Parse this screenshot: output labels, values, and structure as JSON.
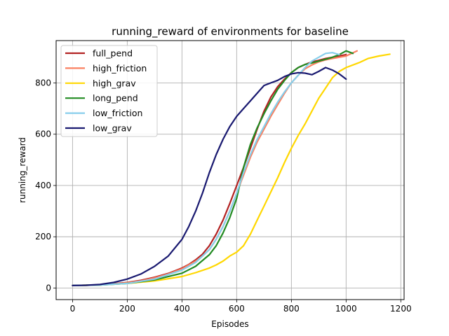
{
  "chart_data": {
    "type": "line",
    "title": "running_reward of environments for baseline",
    "xlabel": "Episodes",
    "ylabel": "running_reward",
    "xlim": [
      -60,
      1212
    ],
    "ylim": [
      -45,
      965
    ],
    "xticks": [
      0,
      200,
      400,
      600,
      800,
      1000,
      1200
    ],
    "yticks": [
      0,
      200,
      400,
      600,
      800
    ],
    "grid": true,
    "legend_position": "top-left",
    "series": [
      {
        "name": "full_pend",
        "color": "#b22222",
        "x": [
          0,
          50,
          100,
          150,
          200,
          250,
          300,
          350,
          400,
          425,
          450,
          475,
          500,
          525,
          550,
          575,
          600,
          625,
          650,
          675,
          700,
          725,
          750,
          775,
          800,
          825,
          850,
          875,
          900,
          925,
          950,
          975,
          1000
        ],
        "y": [
          10,
          11,
          13,
          17,
          22,
          30,
          42,
          57,
          78,
          92,
          110,
          132,
          165,
          210,
          265,
          330,
          400,
          470,
          545,
          620,
          690,
          745,
          785,
          815,
          840,
          860,
          872,
          882,
          888,
          895,
          900,
          905,
          910
        ]
      },
      {
        "name": "high_friction",
        "color": "#fa8060",
        "x": [
          0,
          50,
          100,
          150,
          200,
          250,
          300,
          350,
          400,
          450,
          475,
          500,
          525,
          550,
          575,
          600,
          625,
          650,
          675,
          700,
          725,
          750,
          775,
          800,
          825,
          850,
          875,
          900,
          925,
          950,
          975,
          1000,
          1040
        ],
        "y": [
          10,
          11,
          13,
          16,
          21,
          28,
          40,
          55,
          75,
          105,
          125,
          150,
          190,
          240,
          300,
          370,
          440,
          510,
          570,
          620,
          670,
          715,
          760,
          800,
          830,
          855,
          870,
          882,
          890,
          895,
          900,
          905,
          925
        ]
      },
      {
        "name": "high_grav",
        "color": "#ffd700",
        "x": [
          0,
          100,
          200,
          300,
          400,
          450,
          500,
          525,
          550,
          575,
          600,
          625,
          650,
          675,
          700,
          725,
          750,
          775,
          800,
          825,
          850,
          875,
          900,
          925,
          950,
          975,
          1000,
          1050,
          1080,
          1120,
          1160
        ],
        "y": [
          10,
          12,
          18,
          28,
          45,
          60,
          78,
          90,
          105,
          125,
          140,
          165,
          210,
          265,
          320,
          375,
          430,
          490,
          545,
          595,
          640,
          690,
          740,
          780,
          820,
          845,
          860,
          880,
          895,
          905,
          912
        ]
      },
      {
        "name": "long_pend",
        "color": "#228b22",
        "x": [
          0,
          100,
          200,
          300,
          400,
          450,
          500,
          525,
          550,
          575,
          600,
          625,
          650,
          675,
          700,
          725,
          750,
          775,
          800,
          825,
          850,
          875,
          900,
          925,
          950,
          975,
          1000,
          1025
        ],
        "y": [
          10,
          12,
          18,
          32,
          58,
          85,
          130,
          165,
          215,
          275,
          350,
          470,
          560,
          625,
          680,
          730,
          775,
          810,
          840,
          860,
          872,
          878,
          885,
          892,
          900,
          910,
          925,
          915
        ]
      },
      {
        "name": "low_friction",
        "color": "#87ceeb",
        "x": [
          0,
          100,
          200,
          300,
          400,
          450,
          500,
          525,
          550,
          575,
          600,
          625,
          650,
          675,
          700,
          725,
          750,
          775,
          800,
          825,
          850,
          875,
          900,
          925,
          950,
          975
        ],
        "y": [
          10,
          12,
          18,
          35,
          70,
          100,
          150,
          190,
          240,
          300,
          370,
          450,
          520,
          580,
          630,
          680,
          725,
          765,
          800,
          830,
          860,
          885,
          900,
          915,
          918,
          910
        ]
      },
      {
        "name": "low_grav",
        "color": "#191970",
        "x": [
          0,
          50,
          100,
          150,
          200,
          250,
          300,
          350,
          400,
          425,
          450,
          475,
          500,
          525,
          550,
          575,
          600,
          625,
          650,
          675,
          700,
          725,
          750,
          775,
          800,
          825,
          850,
          875,
          900,
          925,
          950,
          975,
          1000
        ],
        "y": [
          10,
          11,
          14,
          22,
          35,
          55,
          85,
          125,
          190,
          240,
          300,
          370,
          450,
          520,
          580,
          630,
          670,
          700,
          730,
          760,
          790,
          800,
          810,
          825,
          835,
          840,
          838,
          832,
          845,
          860,
          850,
          835,
          815
        ]
      }
    ]
  }
}
